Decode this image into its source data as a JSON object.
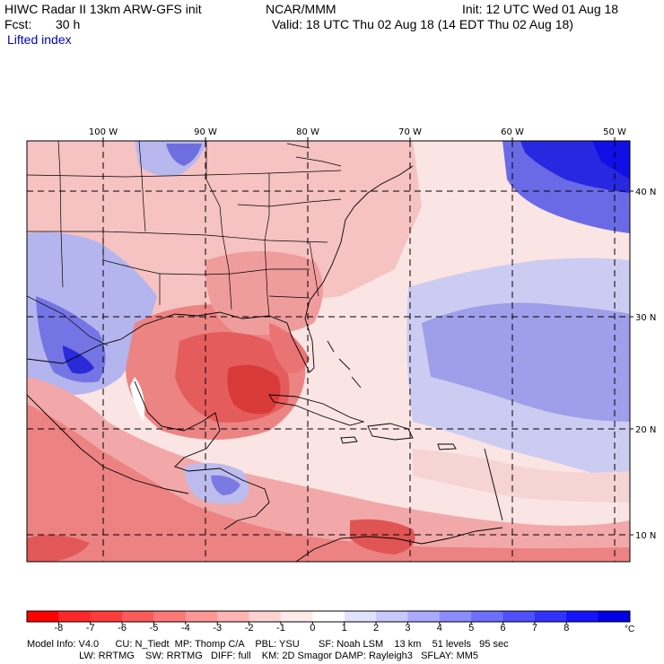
{
  "header": {
    "title": "HIWC Radar II 13km ARW-GFS init",
    "org": "NCAR/MMM",
    "init": "Init: 12 UTC Wed 01 Aug 18",
    "fcst_label": "Fcst:",
    "fcst_value": "30 h",
    "valid": "Valid: 18 UTC Thu 02 Aug 18 (14 EDT Thu 02 Aug 18)",
    "field": "Lifted index"
  },
  "map": {
    "lon_labels": [
      "100 W",
      "90 W",
      "80 W",
      "70 W",
      "60 W",
      "50 W"
    ],
    "lat_labels": [
      "40 N",
      "30 N",
      "20 N",
      "10 N"
    ],
    "colors": {
      "frame": "#000000",
      "grid": "#000000",
      "strong_neg": "#e8444c",
      "neg": "#f4a0a0",
      "weak_neg": "#fbdcdc",
      "strong_pos": "#1a1ae6",
      "pos": "#8a8ae8",
      "weak_pos": "#d8d8f6"
    }
  },
  "colorbar": {
    "labels": [
      "-8",
      "-7",
      "-6",
      "-5",
      "-4",
      "-3",
      "-2",
      "-1",
      "0",
      "1",
      "2",
      "3",
      "4",
      "5",
      "6",
      "7",
      "8"
    ],
    "unit": "°C",
    "colors": [
      "#ff0000",
      "#ff2828",
      "#ff3c3c",
      "#ff5a5a",
      "#ff7878",
      "#ff9696",
      "#ffb4b4",
      "#ffd2d2",
      "#ffeaea",
      "#ffffff",
      "#e2e2ff",
      "#c8c8ff",
      "#aaaaff",
      "#8c8cff",
      "#6e6eff",
      "#5050ff",
      "#3232ff",
      "#1414ff",
      "#0000e6"
    ]
  },
  "footer": {
    "line1": "Model Info: V4.0      CU: N_Tiedt  MP: Thomp C/A    PBL: YSU       SF: Noah LSM    13 km    51 levels   95 sec",
    "line2": "                   LW: RRTMG    SW: RRTMG   DIFF: full    KM: 2D Smagor DAMP: Rayleigh3   SFLAY: MM5"
  }
}
